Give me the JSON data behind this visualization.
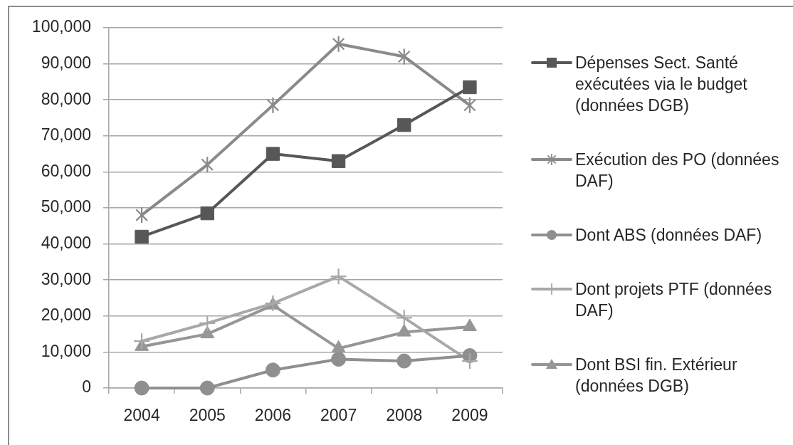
{
  "chart_data": {
    "type": "line",
    "categories": [
      "2004",
      "2005",
      "2006",
      "2007",
      "2008",
      "2009"
    ],
    "series": [
      {
        "name": "Dépenses Sect. Santé exécutées via le budget (données DGB)",
        "color": "#575757",
        "marker": "square",
        "values": [
          42000,
          48500,
          65000,
          63000,
          73000,
          83500
        ]
      },
      {
        "name": "Exécution des PO (données DAF)",
        "color": "#8a8a8a",
        "marker": "star",
        "values": [
          48000,
          62000,
          78500,
          95500,
          92000,
          78500
        ]
      },
      {
        "name": "Dont ABS (données DAF)",
        "color": "#8f8f8f",
        "marker": "circle",
        "values": [
          0,
          0,
          5000,
          8000,
          7500,
          9000
        ]
      },
      {
        "name": "Dont projets PTF (données DAF)",
        "color": "#a8a8a8",
        "marker": "cross",
        "values": [
          13000,
          18000,
          23500,
          31000,
          19500,
          7500
        ]
      },
      {
        "name": "Dont BSI fin. Extérieur (données DGB)",
        "color": "#969696",
        "marker": "triangle",
        "values": [
          11500,
          15000,
          23000,
          11000,
          15500,
          17000
        ]
      }
    ],
    "ylim": [
      0,
      100000
    ],
    "yticks": [
      0,
      {
        "value": 10000,
        "label": "10,000"
      },
      {
        "value": 20000,
        "label": "20,000"
      },
      {
        "value": 30000,
        "label": "30,000"
      },
      {
        "value": 40000,
        "label": "40,000"
      },
      {
        "value": 50000,
        "label": "50,000"
      },
      {
        "value": 60000,
        "label": "60,000"
      },
      {
        "value": 70000,
        "label": "70,000"
      },
      {
        "value": 80000,
        "label": "80,000"
      },
      {
        "value": 90000,
        "label": "90,000"
      },
      {
        "value": 100000,
        "label": "100,000"
      }
    ],
    "grid": "y",
    "legend": "right"
  }
}
